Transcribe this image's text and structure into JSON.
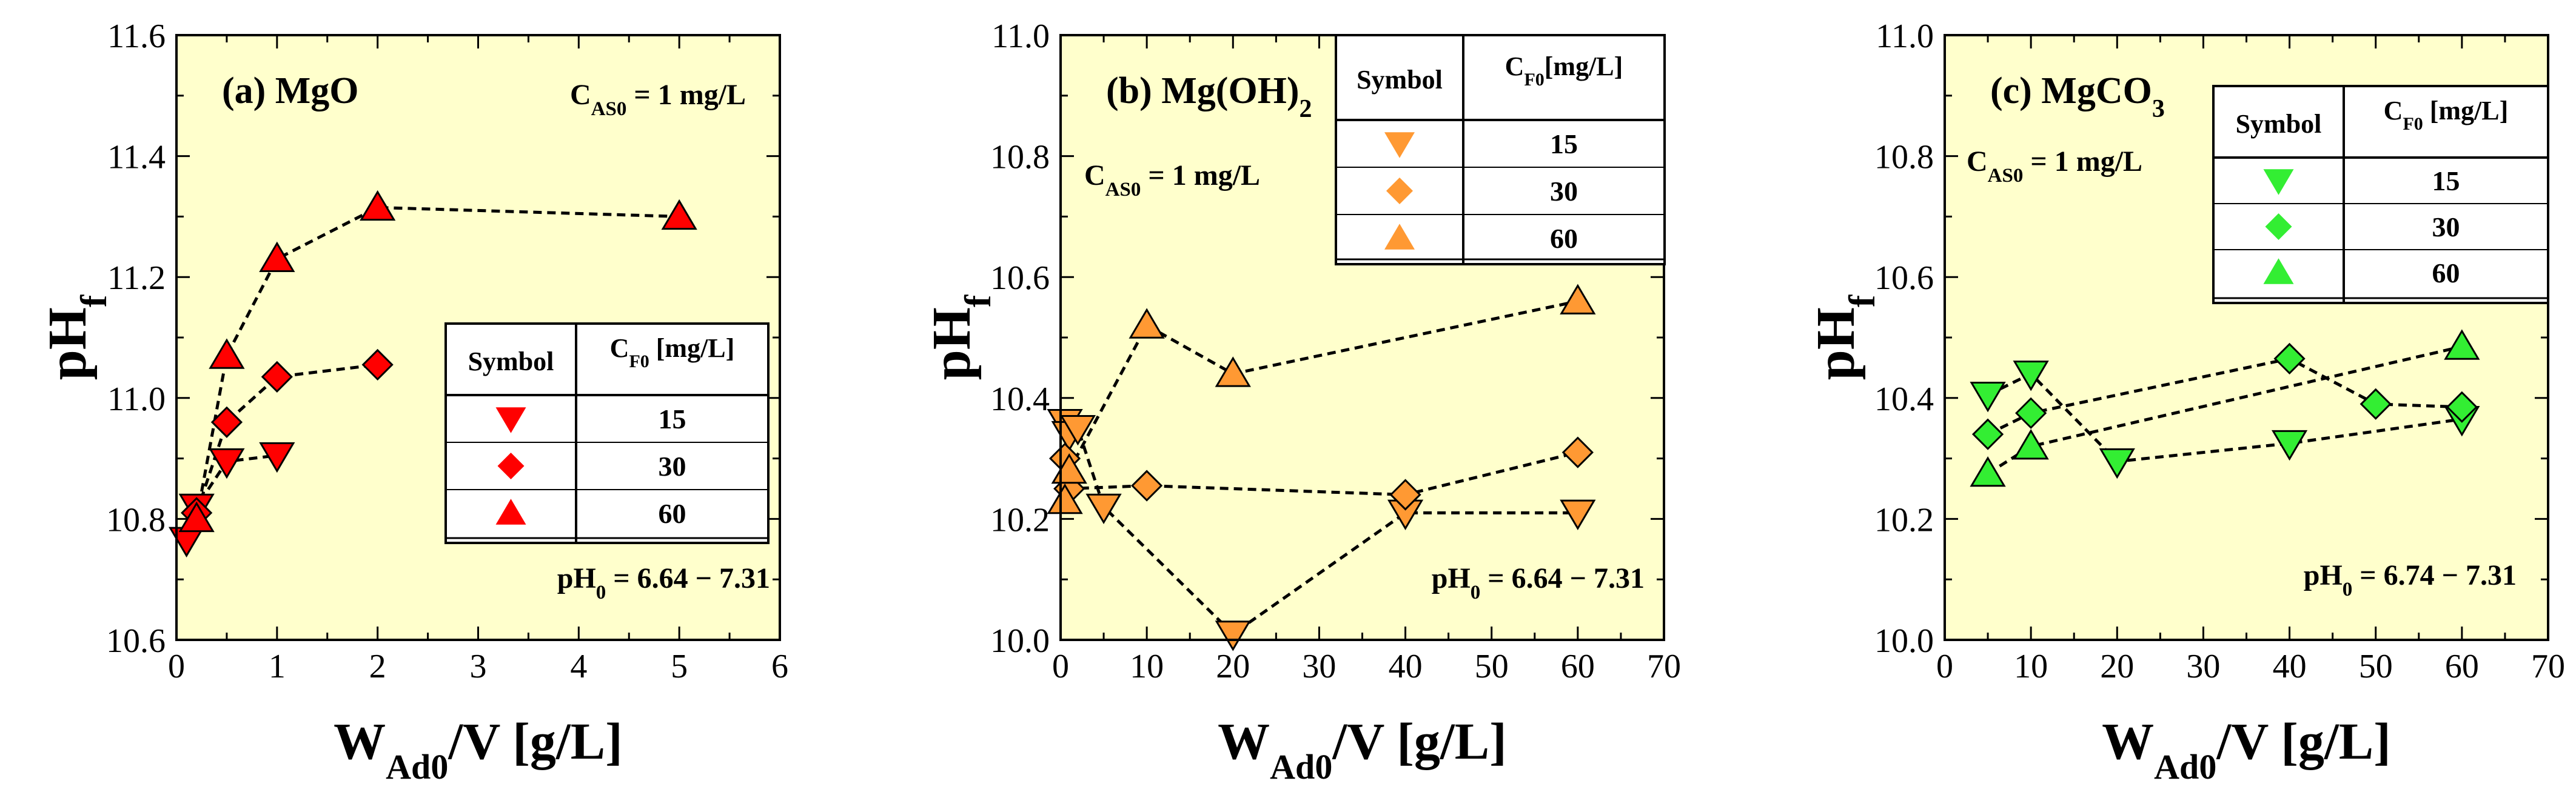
{
  "chart_data": [
    {
      "type": "scatter",
      "panel_label": "(a) MgO",
      "formula_main": "MgO",
      "formula_sub": "",
      "xlabel": "W",
      "xlabel_sub": "Ad0",
      "xlabel_rest": "/V  [g/L]",
      "ylabel": "pH",
      "ylabel_sub": "f",
      "xlim": [
        0,
        6
      ],
      "ylim": [
        10.6,
        11.6
      ],
      "xticks": [
        0,
        1,
        2,
        3,
        4,
        5,
        6
      ],
      "yticks": [
        10.6,
        10.8,
        11.0,
        11.2,
        11.4,
        11.6
      ],
      "xtick_labels": [
        "0",
        "1",
        "2",
        "3",
        "4",
        "5",
        "6"
      ],
      "ytick_labels": [
        "10.6",
        "10.8",
        "11.0",
        "11.2",
        "11.4",
        "11.6"
      ],
      "marker_color": "#ff0000",
      "background": "#ffffcc",
      "annotation_c0_main": "C",
      "annotation_c0_sub": "AS0",
      "annotation_c0_rest": " = 1 mg/L",
      "annotation_ph0_main": "pH",
      "annotation_ph0_sub": "0",
      "annotation_ph0_rest": " = 6.64 − 7.31",
      "legend_header_symbol": "Symbol",
      "legend_header_cf_main": "C",
      "legend_header_cf_sub": "F0",
      "legend_header_cf_rest": " [mg/L]",
      "series": [
        {
          "name": "15",
          "marker": "triangle-down",
          "x": [
            0.1,
            0.2,
            0.5,
            1.0
          ],
          "y": [
            10.765,
            10.82,
            10.895,
            10.905
          ]
        },
        {
          "name": "30",
          "marker": "diamond",
          "x": [
            0.2,
            0.5,
            1.0,
            2.0
          ],
          "y": [
            10.81,
            10.96,
            11.035,
            11.055
          ]
        },
        {
          "name": "60",
          "marker": "triangle-up",
          "x": [
            0.2,
            0.5,
            1.0,
            2.0,
            5.0
          ],
          "y": [
            10.8,
            11.07,
            11.23,
            11.315,
            11.3
          ]
        }
      ]
    },
    {
      "type": "scatter",
      "panel_label": "(b) Mg(OH)2",
      "formula_main": "Mg(OH)",
      "formula_sub": "2",
      "xlabel": "W",
      "xlabel_sub": "Ad0",
      "xlabel_rest": "/V  [g/L]",
      "ylabel": "pH",
      "ylabel_sub": "f",
      "xlim": [
        0,
        70
      ],
      "ylim": [
        10.0,
        11.0
      ],
      "xticks": [
        0,
        10,
        20,
        30,
        40,
        50,
        60,
        70
      ],
      "yticks": [
        10.0,
        10.2,
        10.4,
        10.6,
        10.8,
        11.0
      ],
      "xtick_labels": [
        "0",
        "10",
        "20",
        "30",
        "40",
        "50",
        "60",
        "70"
      ],
      "ytick_labels": [
        "10.0",
        "10.2",
        "10.4",
        "10.6",
        "10.8",
        "11.0"
      ],
      "marker_color": "#ff9933",
      "background": "#ffffcc",
      "annotation_c0_main": "C",
      "annotation_c0_sub": "AS0",
      "annotation_c0_rest": " = 1 mg/L",
      "annotation_ph0_main": "pH",
      "annotation_ph0_sub": "0",
      "annotation_ph0_rest": " = 6.64 − 7.31",
      "legend_header_symbol": "Symbol",
      "legend_header_cf_main": "C",
      "legend_header_cf_sub": "F0",
      "legend_header_cf_rest": "[mg/L]",
      "series": [
        {
          "name": "15",
          "marker": "triangle-down",
          "x": [
            0.5,
            1.0,
            2.0,
            5.0,
            20.0,
            40.0,
            60.0
          ],
          "y": [
            10.36,
            10.34,
            10.35,
            10.22,
            10.01,
            10.21,
            10.21
          ]
        },
        {
          "name": "30",
          "marker": "diamond",
          "x": [
            0.5,
            1.0,
            10.0,
            40.0,
            60.0
          ],
          "y": [
            10.3,
            10.25,
            10.255,
            10.24,
            10.31
          ]
        },
        {
          "name": "60",
          "marker": "triangle-up",
          "x": [
            0.5,
            1.0,
            10.0,
            20.0,
            60.0
          ],
          "y": [
            10.23,
            10.28,
            10.52,
            10.44,
            10.56
          ]
        }
      ]
    },
    {
      "type": "scatter",
      "panel_label": "(c) MgCO3",
      "formula_main": "MgCO",
      "formula_sub": "3",
      "xlabel": "W",
      "xlabel_sub": "Ad0",
      "xlabel_rest": "/V  [g/L]",
      "ylabel": "pH",
      "ylabel_sub": "f",
      "xlim": [
        0,
        70
      ],
      "ylim": [
        10.0,
        11.0
      ],
      "xticks": [
        0,
        10,
        20,
        30,
        40,
        50,
        60,
        70
      ],
      "yticks": [
        10.0,
        10.2,
        10.4,
        10.6,
        10.8,
        11.0
      ],
      "xtick_labels": [
        "0",
        "10",
        "20",
        "30",
        "40",
        "50",
        "60",
        "70"
      ],
      "ytick_labels": [
        "10.0",
        "10.2",
        "10.4",
        "10.6",
        "10.8",
        "11.0"
      ],
      "marker_color": "#33ee33",
      "background": "#ffffcc",
      "annotation_c0_main": "C",
      "annotation_c0_sub": "AS0",
      "annotation_c0_rest": " = 1 mg/L",
      "annotation_ph0_main": "pH",
      "annotation_ph0_sub": "0",
      "annotation_ph0_rest": " = 6.74 − 7.31",
      "legend_header_symbol": "Symbol",
      "legend_header_cf_main": "C",
      "legend_header_cf_sub": "F0",
      "legend_header_cf_rest": " [mg/L]",
      "series": [
        {
          "name": "15",
          "marker": "triangle-down",
          "x": [
            5,
            10,
            20,
            40,
            60
          ],
          "y": [
            10.405,
            10.44,
            10.295,
            10.325,
            10.365
          ]
        },
        {
          "name": "30",
          "marker": "diamond",
          "x": [
            5,
            10,
            40,
            50,
            60
          ],
          "y": [
            10.34,
            10.375,
            10.465,
            10.39,
            10.385
          ]
        },
        {
          "name": "60",
          "marker": "triangle-up",
          "x": [
            5,
            10,
            60
          ],
          "y": [
            10.275,
            10.32,
            10.485
          ]
        }
      ]
    }
  ]
}
